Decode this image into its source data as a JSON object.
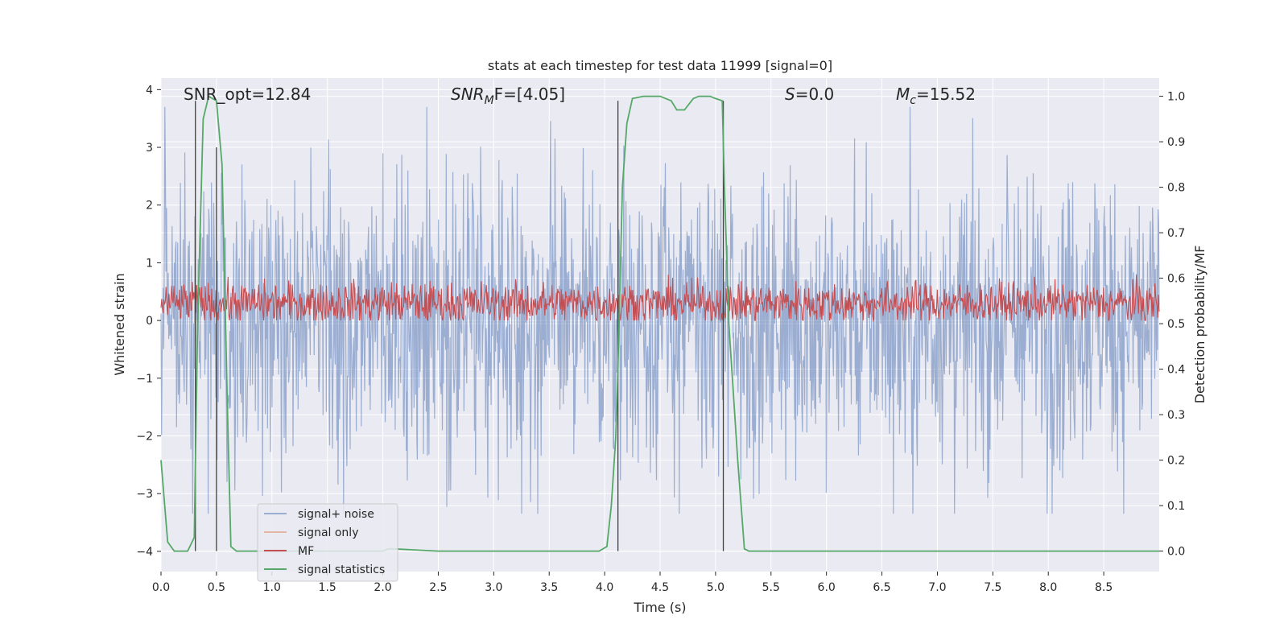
{
  "chart_data": {
    "type": "line",
    "title": "stats at each timestep for test data 11999 [signal=0]",
    "xlabel": "Time (s)",
    "ylabel": "Whitened strain",
    "ylabel_right": "Detection probability/MF",
    "xlim": [
      0.0,
      9.0
    ],
    "ylim": [
      -4.35,
      4.2
    ],
    "ylim_right": [
      -0.045,
      1.04
    ],
    "x_ticks": [
      "0.0",
      "0.5",
      "1.0",
      "1.5",
      "2.0",
      "2.5",
      "3.0",
      "3.5",
      "4.0",
      "4.5",
      "5.0",
      "5.5",
      "6.0",
      "6.5",
      "7.0",
      "7.5",
      "8.0",
      "8.5"
    ],
    "y_ticks": [
      "4",
      "3",
      "2",
      "1",
      "0",
      "−1",
      "−2",
      "−3",
      "−4"
    ],
    "y_right_ticks": [
      "1.0",
      "0.9",
      "0.8",
      "0.7",
      "0.6",
      "0.5",
      "0.4",
      "0.3",
      "0.2",
      "0.1",
      "0.0"
    ],
    "grid": true,
    "legend_position": "lower-left",
    "annotations": {
      "snr_opt": "SNR_opt=12.84",
      "snr_mf_prefix": "SNR",
      "snr_mf_sub": "M",
      "snr_mf_suffix": "F=[4.05]",
      "s_symbol": "S",
      "s_value": "=0.0",
      "mc_symbol": "M",
      "mc_sub": "c",
      "mc_value": "=15.52"
    },
    "series": [
      {
        "name": "signal+ noise",
        "color": "#4c72b0",
        "alpha": 0.5,
        "axis": "left",
        "style": "noise",
        "amplitude": 1.6,
        "peak_range": [
          -3.35,
          3.7
        ]
      },
      {
        "name": "signal only",
        "color": "#dd8452",
        "alpha": 0.5,
        "axis": "left",
        "values": []
      },
      {
        "name": "MF",
        "color": "#c44e52",
        "axis": "left",
        "style": "noise",
        "center": 0.3,
        "range": [
          0.0,
          1.0
        ]
      },
      {
        "name": "signal statistics",
        "color": "#55a868",
        "axis": "right",
        "x": [
          0.0,
          0.06,
          0.12,
          0.18,
          0.24,
          0.3,
          0.33,
          0.38,
          0.43,
          0.5,
          0.55,
          0.6,
          0.63,
          0.68,
          0.8,
          1.0,
          1.5,
          2.0,
          2.05,
          2.1,
          2.5,
          3.0,
          3.5,
          3.95,
          4.02,
          4.06,
          4.1,
          4.12,
          4.16,
          4.2,
          4.25,
          4.35,
          4.5,
          4.6,
          4.65,
          4.72,
          4.8,
          4.85,
          4.95,
          5.0,
          5.06,
          5.08,
          5.12,
          5.2,
          5.26,
          5.3,
          6.0,
          7.0,
          8.0,
          9.0
        ],
        "y": [
          0.2,
          0.02,
          0.0,
          0.0,
          0.0,
          0.03,
          0.5,
          0.95,
          1.0,
          0.99,
          0.85,
          0.3,
          0.01,
          0.0,
          0.0,
          0.0,
          0.0,
          0.0,
          0.005,
          0.005,
          0.0,
          0.0,
          0.0,
          0.0,
          0.01,
          0.1,
          0.25,
          0.4,
          0.8,
          0.94,
          0.995,
          1.0,
          1.0,
          0.99,
          0.97,
          0.97,
          0.995,
          1.0,
          1.0,
          0.995,
          0.99,
          0.8,
          0.5,
          0.2,
          0.005,
          0.0,
          0.0,
          0.0,
          0.0,
          0.0
        ]
      }
    ],
    "vertical_lines_x": [
      0.31,
      0.5,
      4.12,
      5.07
    ],
    "vertical_lines_top_right": 0.99
  }
}
